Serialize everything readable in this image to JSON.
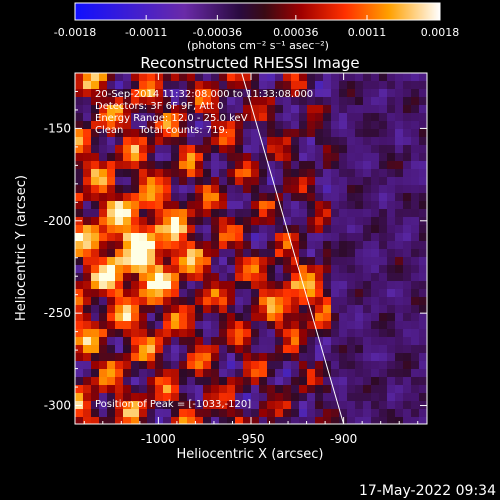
{
  "colorbar": {
    "tick_labels": [
      "-0.0018",
      "-0.0011",
      "-0.00036",
      "0.00036",
      "0.0011",
      "0.0018"
    ],
    "unit_label": "(photons cm⁻² s⁻¹ asec⁻²)",
    "range": [
      -0.0018,
      0.0018
    ]
  },
  "image": {
    "title": "Reconstructed RHESSI Image",
    "info_lines": [
      "20-Sep-2014 11:32:08.000 to 11:33:08.000",
      "Detectors: 3F 6F 9F, Att 0",
      "Energy Range: 12.0 - 25.0 keV",
      "Clean     Total counts: 719."
    ],
    "peak_text": "Position of Peak = [-1033,-120]",
    "x_axis_label": "Heliocentric X (arcsec)",
    "y_axis_label": "Heliocentric Y (arcsec)",
    "x_ticks": [
      "-1000",
      "-950",
      "-900"
    ],
    "y_ticks": [
      "-150",
      "-200",
      "-250",
      "-300"
    ],
    "x_range": [
      -1045,
      -855
    ],
    "y_range": [
      -310,
      -120
    ],
    "limb": {
      "top_x": -955,
      "bottom_x": -900
    }
  },
  "footer": {
    "timestamp": "17-May-2022 09:34"
  }
}
